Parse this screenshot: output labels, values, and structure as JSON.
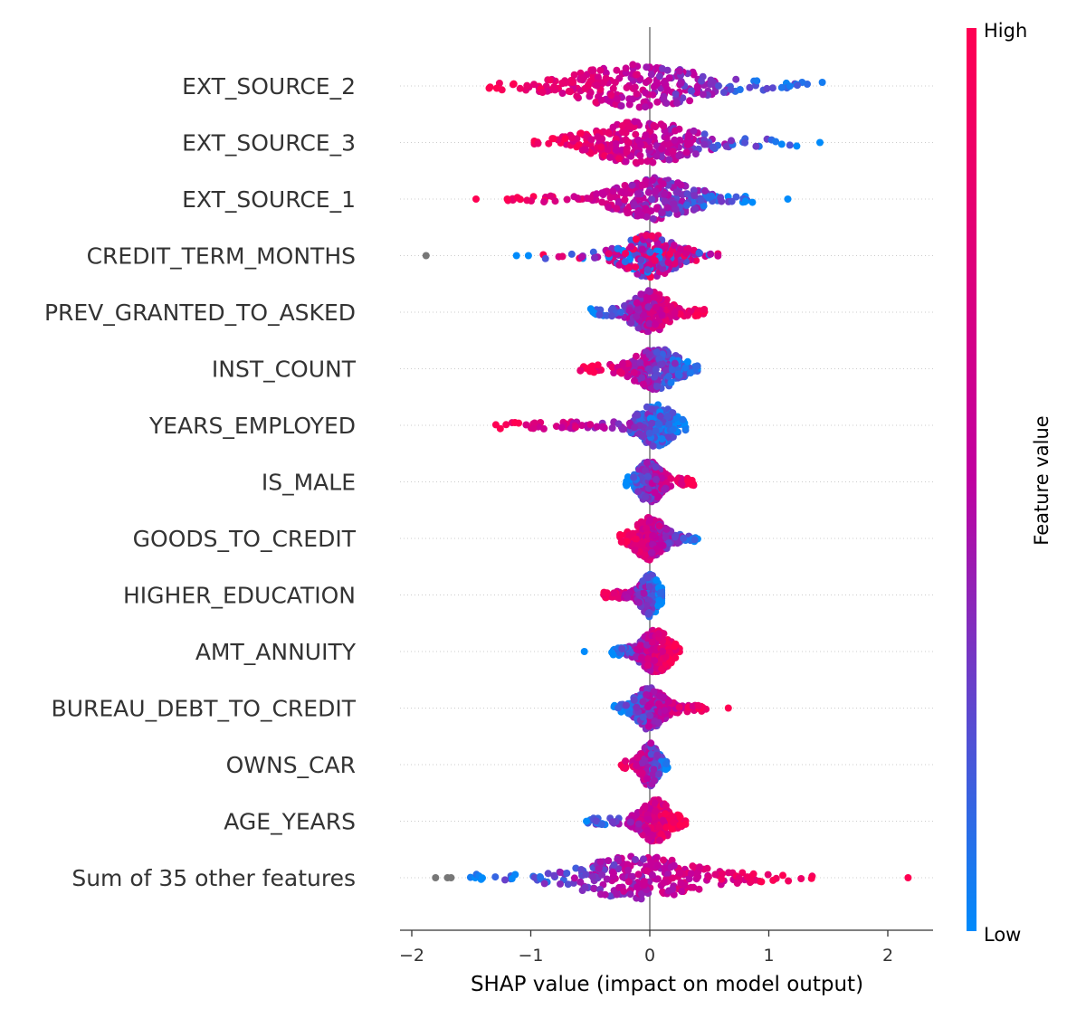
{
  "chart_data": {
    "type": "scatter",
    "subtype": "shap-beeswarm",
    "title": "",
    "xlabel": "SHAP value (impact on model output)",
    "xlim": [
      -2.1,
      2.35
    ],
    "xticks": [
      "−2",
      "−1",
      "0",
      "1",
      "2"
    ],
    "xtick_values": [
      -2,
      -1,
      0,
      1,
      2
    ],
    "colorbar": {
      "label": "Feature value",
      "high": "High",
      "low": "Low",
      "high_color": "#ff0052",
      "mid_color": "#c000a0",
      "low_color": "#008bfb"
    },
    "grid": false,
    "legend": "colorbar-right",
    "features": [
      {
        "name": "EXT_SOURCE_2",
        "min": -1.35,
        "max": 1.45,
        "high_side": "left",
        "mass_center": -0.1,
        "spread": 0.45,
        "outliers": []
      },
      {
        "name": "EXT_SOURCE_3",
        "min": -0.97,
        "max": 1.25,
        "high_side": "left",
        "mass_center": -0.05,
        "spread": 0.35,
        "outliers": [
          1.43
        ]
      },
      {
        "name": "EXT_SOURCE_1",
        "min": -1.25,
        "max": 0.97,
        "high_side": "left",
        "mass_center": 0.05,
        "spread": 0.25,
        "outliers": [
          -1.46,
          1.16
        ]
      },
      {
        "name": "CREDIT_TERM_MONTHS",
        "min": -0.9,
        "max": 0.58,
        "high_side": "mixed",
        "mass_center": 0.0,
        "spread": 0.18,
        "outliers": [
          -1.88,
          -1.12,
          -1.02
        ]
      },
      {
        "name": "PREV_GRANTED_TO_ASKED",
        "min": -0.52,
        "max": 0.47,
        "high_side": "right",
        "mass_center": 0.0,
        "spread": 0.12,
        "outliers": []
      },
      {
        "name": "INST_COUNT",
        "min": -0.6,
        "max": 0.4,
        "high_side": "left",
        "mass_center": 0.05,
        "spread": 0.15,
        "outliers": []
      },
      {
        "name": "YEARS_EMPLOYED",
        "min": -1.3,
        "max": 0.3,
        "high_side": "left",
        "mass_center": 0.05,
        "spread": 0.12,
        "outliers": []
      },
      {
        "name": "IS_MALE",
        "min": -0.2,
        "max": 0.37,
        "high_side": "right",
        "mass_center": 0.0,
        "spread": 0.08,
        "outliers": []
      },
      {
        "name": "GOODS_TO_CREDIT",
        "min": -0.25,
        "max": 0.41,
        "high_side": "left",
        "mass_center": 0.0,
        "spread": 0.1,
        "outliers": []
      },
      {
        "name": "HIGHER_EDUCATION",
        "min": -0.4,
        "max": 0.1,
        "high_side": "left",
        "mass_center": 0.0,
        "spread": 0.06,
        "outliers": []
      },
      {
        "name": "AMT_ANNUITY",
        "min": -0.35,
        "max": 0.25,
        "high_side": "right",
        "mass_center": 0.05,
        "spread": 0.1,
        "outliers": [
          -0.55
        ]
      },
      {
        "name": "BUREAU_DEBT_TO_CREDIT",
        "min": -0.3,
        "max": 0.5,
        "high_side": "right",
        "mass_center": 0.0,
        "spread": 0.1,
        "outliers": [
          0.66
        ]
      },
      {
        "name": "OWNS_CAR",
        "min": -0.25,
        "max": 0.15,
        "high_side": "left",
        "mass_center": 0.0,
        "spread": 0.06,
        "outliers": []
      },
      {
        "name": "AGE_YEARS",
        "min": -0.57,
        "max": 0.3,
        "high_side": "right",
        "mass_center": 0.05,
        "spread": 0.1,
        "outliers": []
      },
      {
        "name": "Sum of 35 other features",
        "min": -1.55,
        "max": 1.38,
        "high_side": "right",
        "mass_center": -0.1,
        "spread": 0.4,
        "outliers": [
          -1.8,
          -1.7,
          -1.67,
          2.17
        ]
      }
    ]
  }
}
